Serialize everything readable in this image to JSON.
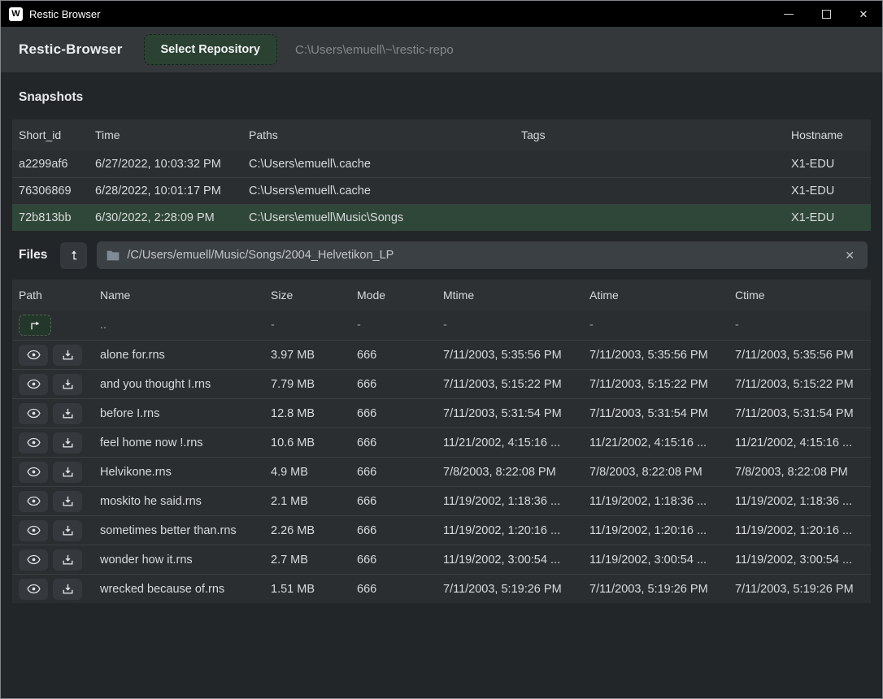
{
  "window": {
    "title": "Restic Browser",
    "logo_letter": "W",
    "controls": {
      "minimize": "minimize",
      "maximize": "maximize",
      "close": "✕"
    }
  },
  "toolbar": {
    "app_title": "Restic-Browser",
    "select_repository_label": "Select Repository",
    "repo_path": "C:\\Users\\emuell\\~\\restic-repo"
  },
  "snapshots": {
    "section_title": "Snapshots",
    "columns": [
      "Short_id",
      "Time",
      "Paths",
      "Tags",
      "Hostname"
    ],
    "rows": [
      {
        "short_id": "a2299af6",
        "time": "6/27/2022, 10:03:32 PM",
        "paths": "C:\\Users\\emuell\\.cache",
        "tags": "",
        "hostname": "X1-EDU",
        "selected": false
      },
      {
        "short_id": "76306869",
        "time": "6/28/2022, 10:01:17 PM",
        "paths": "C:\\Users\\emuell\\.cache",
        "tags": "",
        "hostname": "X1-EDU",
        "selected": false
      },
      {
        "short_id": "72b813bb",
        "time": "6/30/2022, 2:28:09 PM",
        "paths": "C:\\Users\\emuell\\Music\\Songs",
        "tags": "",
        "hostname": "X1-EDU",
        "selected": true
      }
    ]
  },
  "files": {
    "section_title": "Files",
    "path_value": "/C/Users/emuell/Music/Songs/2004_Helvetikon_LP",
    "clear_label": "✕",
    "columns": [
      "Path",
      "Name",
      "Size",
      "Mode",
      "Mtime",
      "Atime",
      "Ctime"
    ],
    "parent_row": {
      "name": "..",
      "size": "-",
      "mode": "-",
      "mtime": "-",
      "atime": "-",
      "ctime": "-"
    },
    "rows": [
      {
        "name": "alone for.rns",
        "size": "3.97 MB",
        "mode": "666",
        "mtime": "7/11/2003, 5:35:56 PM",
        "atime": "7/11/2003, 5:35:56 PM",
        "ctime": "7/11/2003, 5:35:56 PM"
      },
      {
        "name": "and you thought I.rns",
        "size": "7.79 MB",
        "mode": "666",
        "mtime": "7/11/2003, 5:15:22 PM",
        "atime": "7/11/2003, 5:15:22 PM",
        "ctime": "7/11/2003, 5:15:22 PM"
      },
      {
        "name": "before I.rns",
        "size": "12.8 MB",
        "mode": "666",
        "mtime": "7/11/2003, 5:31:54 PM",
        "atime": "7/11/2003, 5:31:54 PM",
        "ctime": "7/11/2003, 5:31:54 PM"
      },
      {
        "name": "feel home now !.rns",
        "size": "10.6 MB",
        "mode": "666",
        "mtime": "11/21/2002, 4:15:16 ...",
        "atime": "11/21/2002, 4:15:16 ...",
        "ctime": "11/21/2002, 4:15:16 ..."
      },
      {
        "name": "Helvikone.rns",
        "size": "4.9 MB",
        "mode": "666",
        "mtime": "7/8/2003, 8:22:08 PM",
        "atime": "7/8/2003, 8:22:08 PM",
        "ctime": "7/8/2003, 8:22:08 PM"
      },
      {
        "name": "moskito he said.rns",
        "size": "2.1 MB",
        "mode": "666",
        "mtime": "11/19/2002, 1:18:36 ...",
        "atime": "11/19/2002, 1:18:36 ...",
        "ctime": "11/19/2002, 1:18:36 ..."
      },
      {
        "name": "sometimes better than.rns",
        "size": "2.26 MB",
        "mode": "666",
        "mtime": "11/19/2002, 1:20:16 ...",
        "atime": "11/19/2002, 1:20:16 ...",
        "ctime": "11/19/2002, 1:20:16 ..."
      },
      {
        "name": "wonder how it.rns",
        "size": "2.7 MB",
        "mode": "666",
        "mtime": "11/19/2002, 3:00:54 ...",
        "atime": "11/19/2002, 3:00:54 ...",
        "ctime": "11/19/2002, 3:00:54 ..."
      },
      {
        "name": "wrecked because of.rns",
        "size": "1.51 MB",
        "mode": "666",
        "mtime": "7/11/2003, 5:19:26 PM",
        "atime": "7/11/2003, 5:19:26 PM",
        "ctime": "7/11/2003, 5:19:26 PM"
      }
    ]
  },
  "colors": {
    "titlebar": "#000000",
    "toolbar": "#34383b",
    "page_bg": "#232629",
    "row_bg": "#2a2e31",
    "selected_row": "#2f4738",
    "accent_green": "#2b4233",
    "pathbar": "#3b4044"
  }
}
